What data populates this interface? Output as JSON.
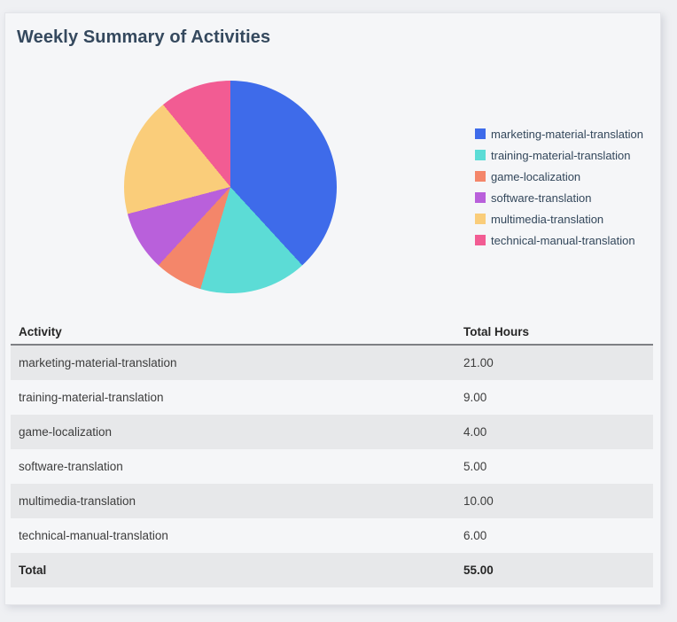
{
  "page_title": "Weekly Summary of Activities",
  "colors": {
    "title_text": "#35495e",
    "page_background": "#eff0f3",
    "card_background": "#f5f6f8",
    "shaded_row": "#e7e8ea",
    "header_border": "#7e8084"
  },
  "chart_data": {
    "type": "pie",
    "title": "Weekly Summary of Activities",
    "categories": [
      "marketing-material-translation",
      "training-material-translation",
      "game-localization",
      "software-translation",
      "multimedia-translation",
      "technical-manual-translation"
    ],
    "values": [
      21,
      9,
      4,
      5,
      10,
      6
    ],
    "total": 55,
    "colors": [
      "#3E6BEA",
      "#5CDCD6",
      "#F4866A",
      "#B960DB",
      "#FACD7A",
      "#F25C93"
    ],
    "legend_position": "right",
    "start_angle_deg": 0,
    "direction": "clockwise"
  },
  "legend": {
    "items": [
      {
        "label": "marketing-material-translation",
        "color": "#3E6BEA"
      },
      {
        "label": "training-material-translation",
        "color": "#5CDCD6"
      },
      {
        "label": "game-localization",
        "color": "#F4866A"
      },
      {
        "label": "software-translation",
        "color": "#B960DB"
      },
      {
        "label": "multimedia-translation",
        "color": "#FACD7A"
      },
      {
        "label": "technical-manual-translation",
        "color": "#F25C93"
      }
    ]
  },
  "table": {
    "headers": [
      "Activity",
      "Total Hours"
    ],
    "rows": [
      {
        "activity": "marketing-material-translation",
        "hours": "21.00"
      },
      {
        "activity": "training-material-translation",
        "hours": "9.00"
      },
      {
        "activity": "game-localization",
        "hours": "4.00"
      },
      {
        "activity": "software-translation",
        "hours": "5.00"
      },
      {
        "activity": "multimedia-translation",
        "hours": "10.00"
      },
      {
        "activity": "technical-manual-translation",
        "hours": "6.00"
      }
    ],
    "total_row": {
      "label": "Total",
      "hours": "55.00"
    }
  }
}
